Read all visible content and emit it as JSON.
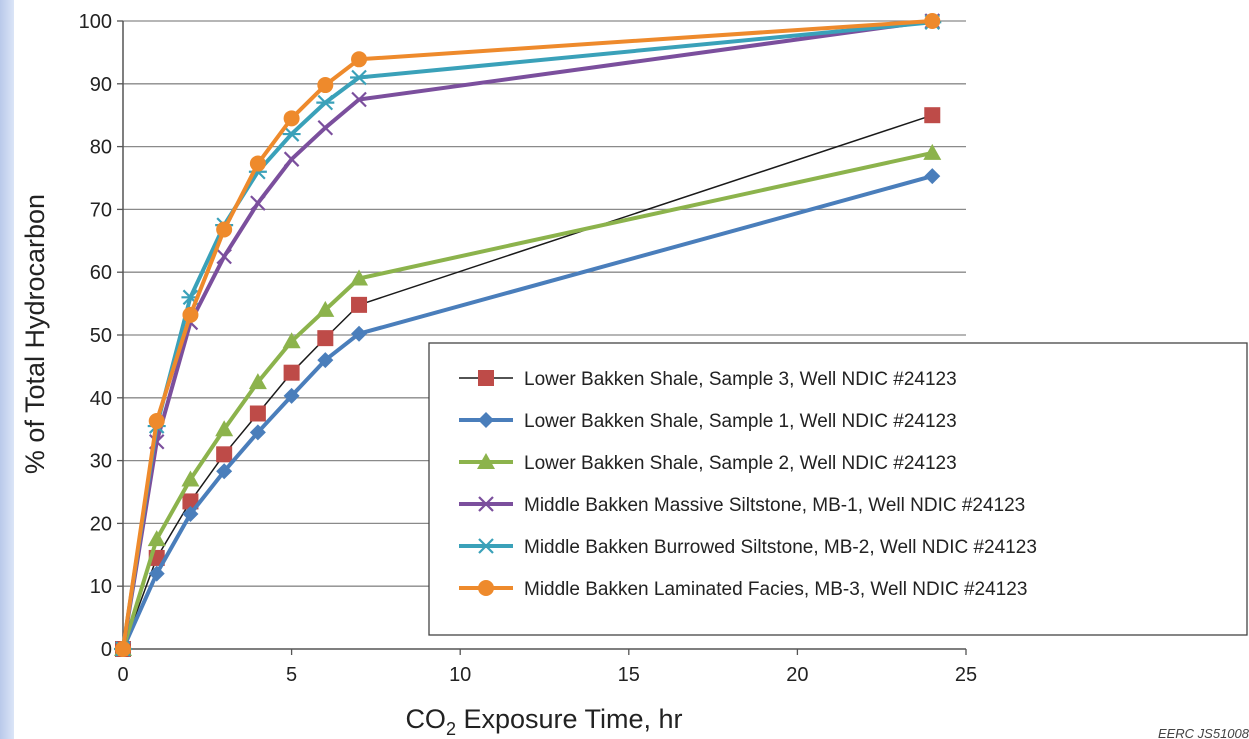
{
  "chart_data": {
    "type": "line",
    "xlabel": {
      "prefix": "CO",
      "sub": "2",
      "suffix": " Exposure Time, hr"
    },
    "ylabel": "% of Total Hydrocarbon",
    "xlim": [
      0,
      25
    ],
    "ylim": [
      0,
      100
    ],
    "xticks": [
      0,
      5,
      10,
      15,
      20,
      25
    ],
    "yticks": [
      0,
      10,
      20,
      30,
      40,
      50,
      60,
      70,
      80,
      90,
      100
    ],
    "grid": "horizontal",
    "legend_position": "lower-right",
    "series": [
      {
        "name": "Lower Bakken Shale, Sample 3, Well NDIC #24123",
        "color": "#be4b48",
        "line_color": "#1a1a1a",
        "line_width": 1.5,
        "marker": "square",
        "x": [
          0,
          1,
          2,
          3,
          4,
          5,
          6,
          7,
          24
        ],
        "y": [
          0,
          14.5,
          23.5,
          31,
          37.5,
          44,
          49.5,
          54.8,
          85
        ]
      },
      {
        "name": "Lower Bakken Shale, Sample 1, Well NDIC #24123",
        "color": "#4a7ebb",
        "line_color": "#4a7ebb",
        "line_width": 4,
        "marker": "diamond",
        "x": [
          0,
          1,
          2,
          3,
          4,
          5,
          6,
          7,
          24
        ],
        "y": [
          0,
          12,
          21.5,
          28.3,
          34.5,
          40.3,
          46,
          50.2,
          75.3
        ]
      },
      {
        "name": "Lower Bakken Shale, Sample 2, Well NDIC #24123",
        "color": "#8cb34c",
        "line_color": "#8cb34c",
        "line_width": 4,
        "marker": "triangle",
        "x": [
          0,
          1,
          2,
          3,
          4,
          5,
          6,
          7,
          24
        ],
        "y": [
          0,
          17.5,
          27,
          35,
          42.5,
          49,
          54,
          59,
          79
        ]
      },
      {
        "name": "Middle Bakken Massive Siltstone, MB-1, Well NDIC #24123",
        "color": "#7b4f9d",
        "line_color": "#7b4f9d",
        "line_width": 4,
        "marker": "x",
        "x": [
          0,
          1,
          2,
          3,
          4,
          5,
          6,
          7,
          24
        ],
        "y": [
          0,
          33,
          52,
          62.5,
          71,
          78,
          83,
          87.5,
          100
        ]
      },
      {
        "name": "Middle Bakken Burrowed Siltstone, MB-2, Well NDIC #24123",
        "color": "#3aa1b9",
        "line_color": "#3aa1b9",
        "line_width": 4,
        "marker": "asterisk",
        "x": [
          0,
          1,
          2,
          3,
          4,
          5,
          6,
          7,
          24
        ],
        "y": [
          0,
          35.5,
          56,
          67.5,
          76,
          82,
          87,
          91,
          99.8
        ]
      },
      {
        "name": "Middle Bakken Laminated Facies, MB-3, Well NDIC #24123",
        "color": "#ee8a2c",
        "line_color": "#ee8a2c",
        "line_width": 4,
        "marker": "circle",
        "x": [
          0,
          1,
          2,
          3,
          4,
          5,
          6,
          7,
          24
        ],
        "y": [
          0,
          36.3,
          53.2,
          66.8,
          77.3,
          84.5,
          89.8,
          93.9,
          100
        ]
      }
    ]
  },
  "watermark": "EERC JS51008"
}
